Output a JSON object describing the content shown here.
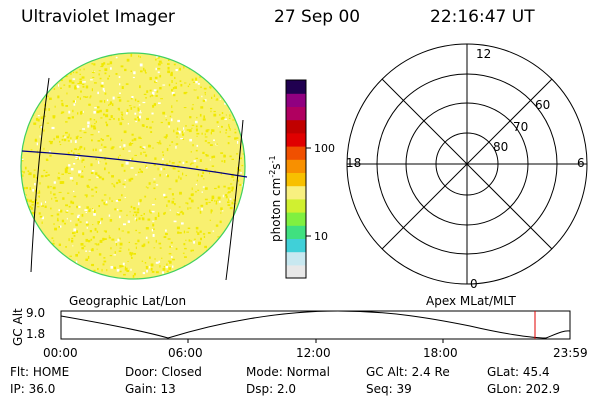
{
  "header": {
    "instrument": "Ultraviolet Imager",
    "date": "27 Sep 00",
    "time": "22:16:47 UT"
  },
  "colorbar": {
    "label_text": "photon cm",
    "label_exp1": "-2",
    "label_mid": "s",
    "label_exp2": "-1",
    "ticks": [
      "100",
      "10"
    ],
    "colors": [
      "#e8e8e8",
      "#c8e8f0",
      "#40d0d8",
      "#40e080",
      "#80f040",
      "#d0f030",
      "#f8f080",
      "#f8c000",
      "#f89000",
      "#f05000",
      "#e00000",
      "#c00000",
      "#b00060",
      "#900080",
      "#200050"
    ]
  },
  "image_panel": {
    "caption": "Geographic Lat/Lon",
    "disk_color": "#f8f070",
    "speckle_color": "#f0e800",
    "rim_color": "#40d060"
  },
  "polar_panel": {
    "caption": "Apex MLat/MLT",
    "mlt_labels": {
      "top": "12",
      "left": "18",
      "right": "6",
      "bottom": "0"
    },
    "lat_labels": [
      "60",
      "70",
      "80"
    ]
  },
  "altitude_plot": {
    "ylabel": "GC Alt",
    "yticks": [
      "9.0",
      "1.8"
    ],
    "xticks": [
      "00:00",
      "06:00",
      "12:00",
      "18:00",
      "23:59"
    ],
    "marker_color": "#e00000"
  },
  "status": {
    "row1": [
      {
        "key": "Flt:",
        "value": "HOME"
      },
      {
        "key": "Door:",
        "value": "Closed"
      },
      {
        "key": "Mode:",
        "value": "Normal"
      },
      {
        "key": "GC Alt:",
        "value": "2.4 Re"
      },
      {
        "key": "GLat:",
        "value": "45.4"
      }
    ],
    "row2": [
      {
        "key": "IP:",
        "value": "36.0"
      },
      {
        "key": "Gain:",
        "value": "13"
      },
      {
        "key": "Dsp:",
        "value": "2.0"
      },
      {
        "key": "Seq:",
        "value": "39"
      },
      {
        "key": "GLon:",
        "value": "202.9"
      }
    ]
  }
}
